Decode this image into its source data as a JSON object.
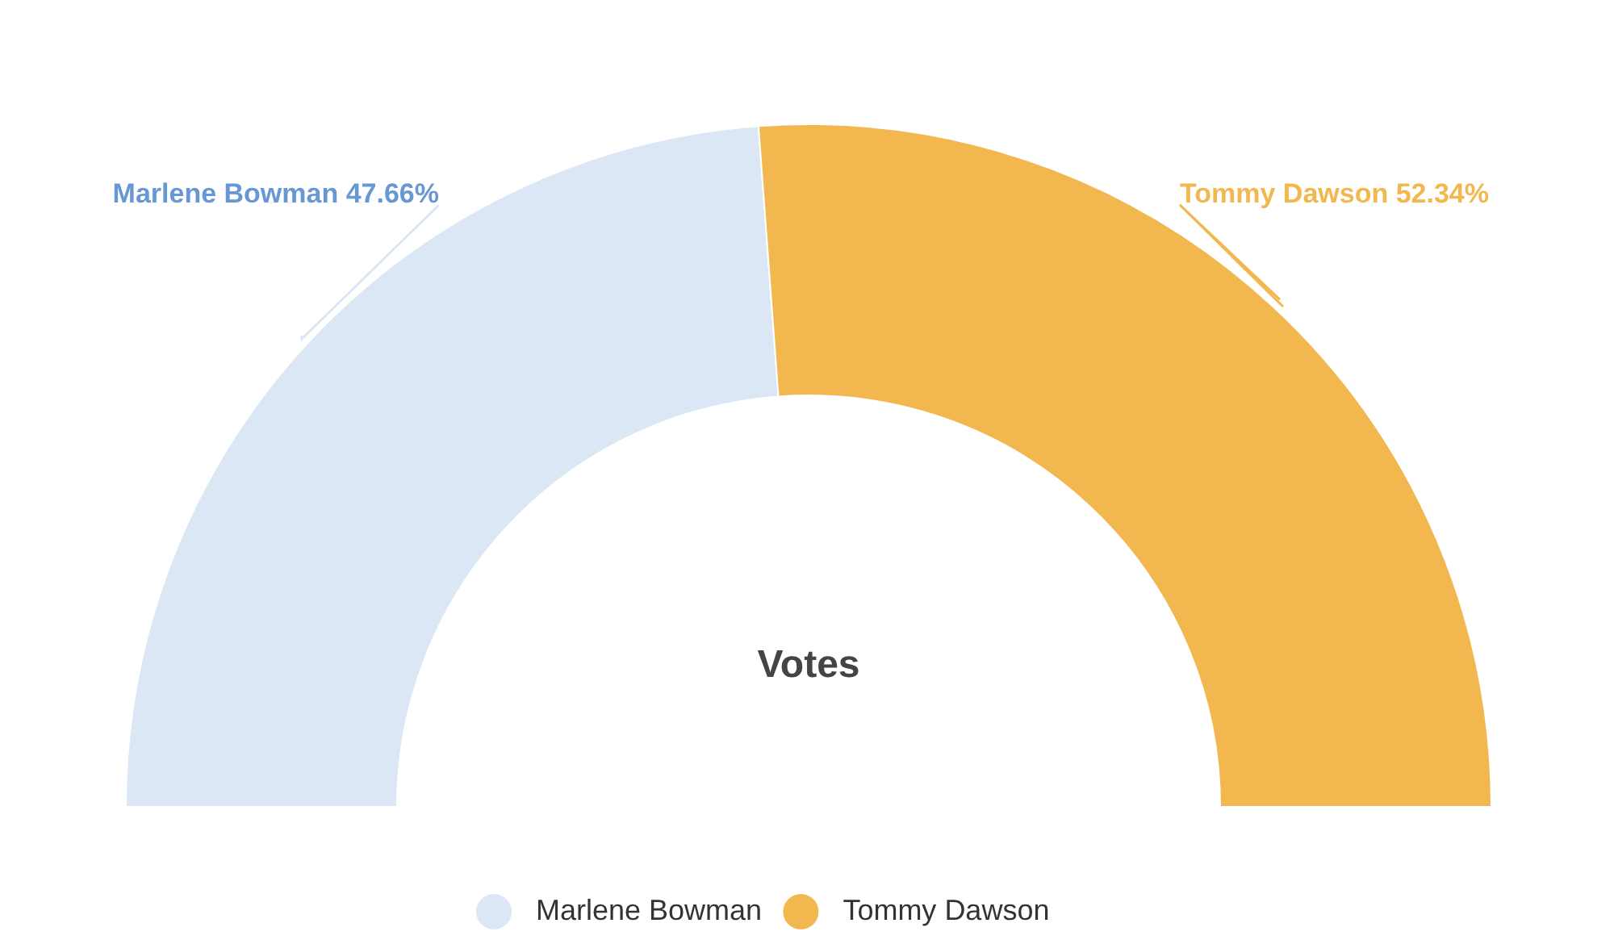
{
  "chart_data": {
    "type": "donut",
    "title": "Votes",
    "categories": [
      "Marlene Bowman",
      "Tommy Dawson"
    ],
    "values": [
      47.66,
      52.34
    ],
    "colors": [
      "#dce7f5",
      "#f2b84f"
    ],
    "value_labels": [
      "Marlene Bowman 47.66%",
      "Tommy Dawson 52.34%"
    ],
    "legend": "bottom"
  }
}
